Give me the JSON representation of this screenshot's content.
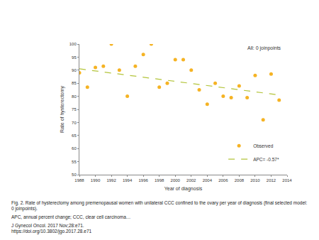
{
  "chart_data": {
    "type": "scatter",
    "xlabel": "Year of diagnosis",
    "ylabel": "Rate of hysterectomy",
    "annotations": [
      "All: 0 joinpoints"
    ],
    "caption": [
      "Fig. 2. Rate of hysterectomy among premenopausal women with unilateral CCC confined to the ovary per year of diagnosis (final selected model: 0 joinpoints).",
      "APC, annual percent change; CCC, clear cell carcinoma…",
      "J Gynecol Oncol. 2017 Nov;28:e71.",
      "https://doi.org/10.3802/jgo.2017.28.e71"
    ],
    "series": [
      {
        "name": "Observed",
        "type": "scatter",
        "marker": "circle",
        "color": "#f5b324",
        "x": [
          1988,
          1989,
          1990,
          1991,
          1992,
          1993,
          1994,
          1995,
          1996,
          1997,
          1998,
          1999,
          2000,
          2001,
          2002,
          2003,
          2004,
          2005,
          2006,
          2007,
          2008,
          2009,
          2010,
          2011,
          2012,
          2013
        ],
        "values": [
          89,
          83.5,
          91,
          91.5,
          100,
          90,
          80,
          91.5,
          96,
          100,
          83.5,
          85,
          94,
          94,
          90,
          82.5,
          77,
          85,
          80,
          79.5,
          84,
          79.5,
          88,
          71,
          88.5,
          78.5
        ]
      },
      {
        "name": "APC= -0.57*",
        "type": "line",
        "line_style": "dashed",
        "color": "#b3c43a",
        "x": [
          1988,
          2013
        ],
        "values": [
          90.5,
          80.5
        ]
      }
    ],
    "xlim": [
      1988,
      2014
    ],
    "xticks": [
      1988,
      1990,
      1992,
      1994,
      1996,
      1998,
      2000,
      2002,
      2004,
      2006,
      2008,
      2010,
      2012,
      2014
    ],
    "ylim": [
      50,
      100
    ],
    "yticks": [
      50,
      55,
      60,
      65,
      70,
      75,
      80,
      85,
      90,
      95,
      100
    ],
    "grid": false,
    "legend": "bottom right"
  }
}
